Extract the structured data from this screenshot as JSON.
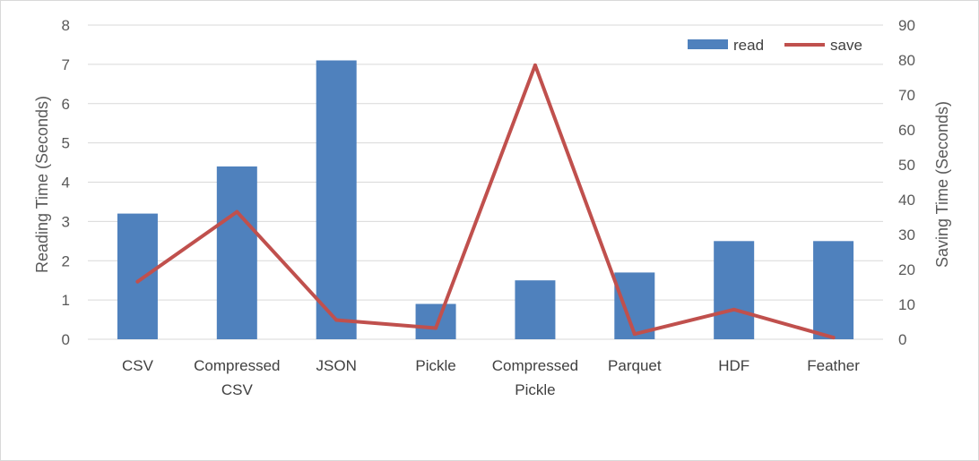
{
  "chart_data": {
    "type": "bar",
    "categories": [
      [
        "CSV"
      ],
      [
        "Compressed",
        "CSV"
      ],
      [
        "JSON"
      ],
      [
        "Pickle"
      ],
      [
        "Compressed",
        "Pickle"
      ],
      [
        "Parquet"
      ],
      [
        "HDF"
      ],
      [
        "Feather"
      ]
    ],
    "series": [
      {
        "name": "read",
        "type": "bar",
        "axis": "left",
        "color": "#4f81bd",
        "values": [
          3.2,
          4.4,
          7.1,
          0.9,
          1.5,
          1.7,
          2.5,
          2.5
        ]
      },
      {
        "name": "save",
        "type": "line",
        "axis": "right",
        "color": "#c0504d",
        "values": [
          16.5,
          36.5,
          5.5,
          3.2,
          78.5,
          1.5,
          8.5,
          0.5
        ]
      }
    ],
    "ylabel": "Reading Time (Seconds)",
    "y2label": "Saving Time (Seconds)",
    "ylim": [
      0,
      8
    ],
    "y2lim": [
      0,
      90
    ],
    "yticks": [
      "0",
      "1",
      "2",
      "3",
      "4",
      "5",
      "6",
      "7",
      "8"
    ],
    "y2ticks": [
      "0",
      "10",
      "20",
      "30",
      "40",
      "50",
      "60",
      "70",
      "80",
      "90"
    ],
    "grid": true,
    "legend_position": "top-right"
  }
}
